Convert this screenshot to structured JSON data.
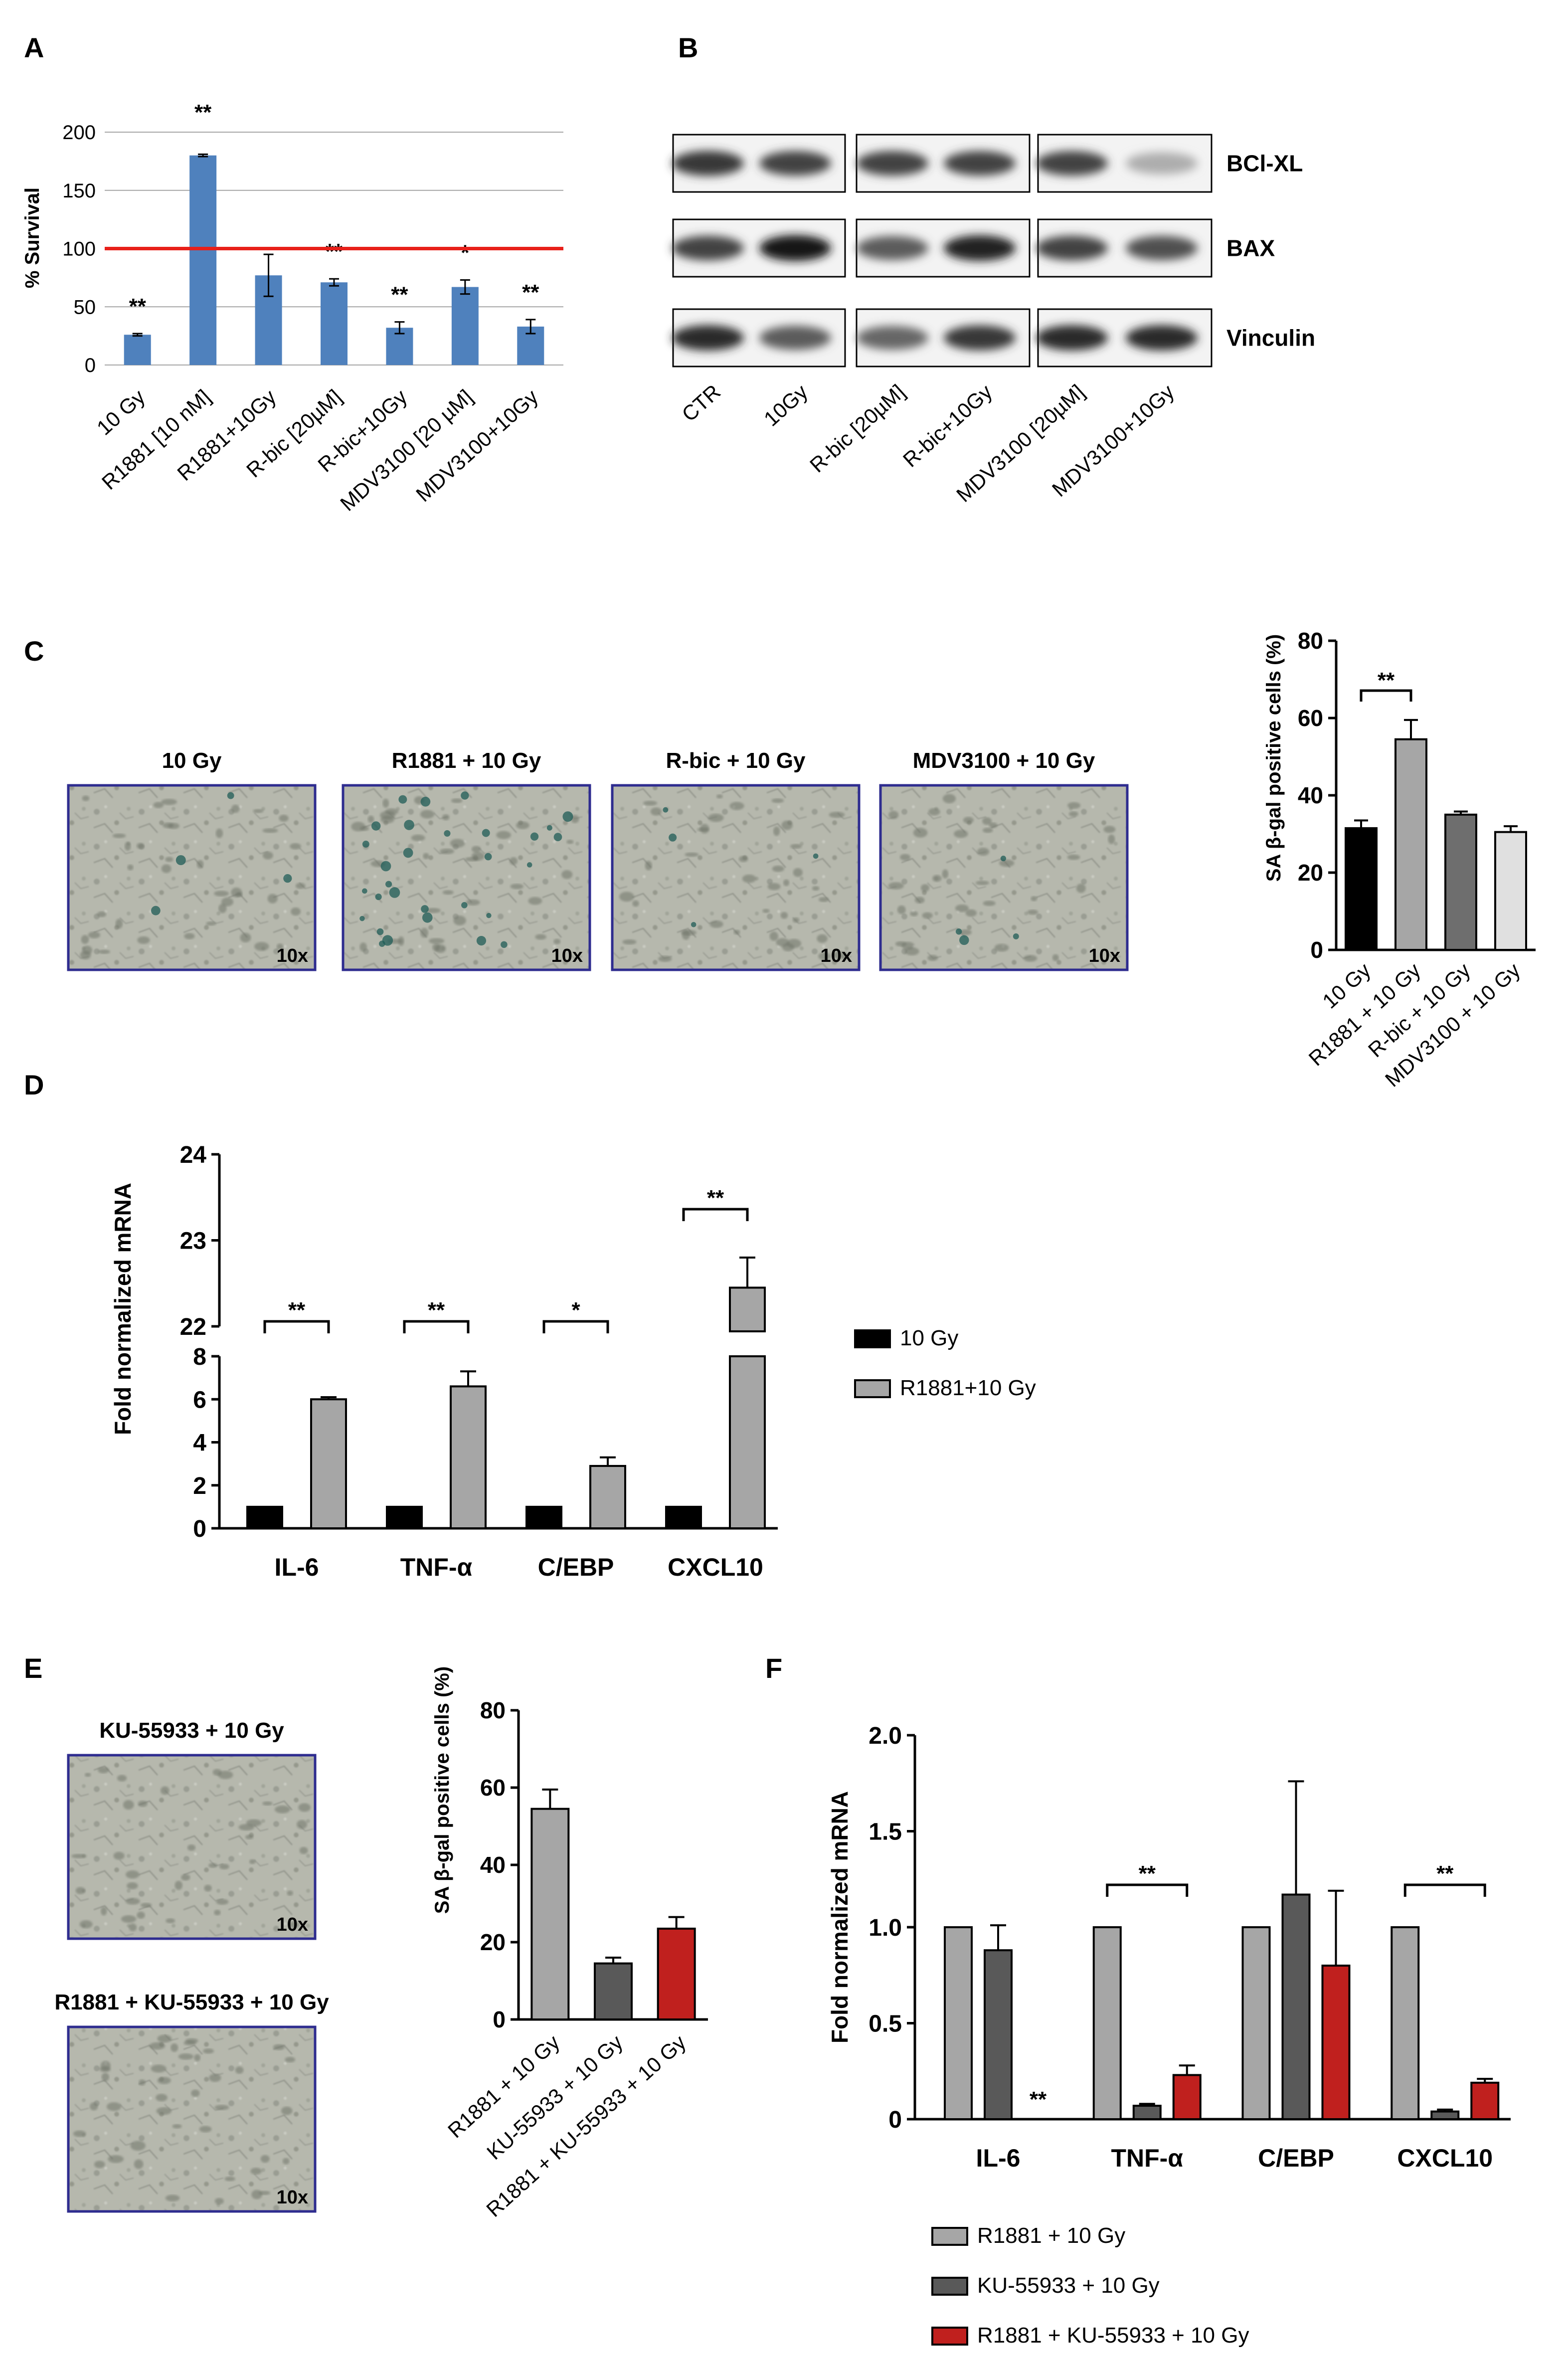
{
  "panels": {
    "A": {
      "letter": "A",
      "chart_data": {
        "type": "bar",
        "title": "",
        "ylabel": "% Survival",
        "ylim": [
          0,
          200
        ],
        "yticks": [
          0,
          50,
          100,
          150,
          200
        ],
        "reference_line": {
          "value": 100,
          "color": "#e8201a"
        },
        "categories": [
          "10 Gy",
          "R1881 [10 nM]",
          "R1881+10Gy",
          "R-bic [20µM]",
          "R-bic+10Gy",
          "MDV3100 [20 µM]",
          "MDV3100+10Gy"
        ],
        "values": [
          26,
          180,
          77,
          71,
          32,
          67,
          33
        ],
        "errors": [
          1,
          1,
          18,
          3,
          5,
          6,
          6
        ],
        "significance": [
          "**",
          "**",
          "",
          "**",
          "**",
          "*",
          "**"
        ],
        "bar_color": "#4f81bd",
        "grid": true
      }
    },
    "B": {
      "letter": "B",
      "lanes": [
        "CTR",
        "10Gy",
        "R-bic [20µM]",
        "R-bic+10Gy",
        "MDV3100 [20µM]",
        "MDV3100+10Gy"
      ],
      "rows": [
        {
          "label": "BCl-XL",
          "intensity": [
            0.85,
            0.8,
            0.8,
            0.8,
            0.8,
            0.35
          ]
        },
        {
          "label": "BAX",
          "intensity": [
            0.8,
            1.0,
            0.7,
            0.95,
            0.8,
            0.75
          ]
        },
        {
          "label": "Vinculin",
          "intensity": [
            0.9,
            0.7,
            0.65,
            0.85,
            0.9,
            0.9
          ]
        }
      ]
    },
    "C": {
      "letter": "C",
      "images": [
        {
          "title": "10 Gy",
          "mag": "10x"
        },
        {
          "title": "R1881 + 10 Gy",
          "mag": "10x"
        },
        {
          "title": "R-bic + 10 Gy",
          "mag": "10x"
        },
        {
          "title": "MDV3100 + 10 Gy",
          "mag": "10x"
        }
      ],
      "chart_data": {
        "type": "bar",
        "ylabel": "SA β-gal positive cells (%)",
        "ylim": [
          0,
          80
        ],
        "yticks": [
          0,
          20,
          40,
          60,
          80
        ],
        "categories": [
          "10 Gy",
          "R1881 + 10 Gy",
          "R-bic + 10 Gy",
          "MDV3100 + 10 Gy"
        ],
        "values": [
          31.5,
          54.5,
          35,
          30.5
        ],
        "errors": [
          2,
          5,
          0.8,
          1.5
        ],
        "colors": [
          "#000000",
          "#a6a6a6",
          "#6e6e6e",
          "#e0e0e0"
        ],
        "bracket": {
          "from": 0,
          "to": 1,
          "label": "**"
        }
      }
    },
    "D": {
      "letter": "D",
      "chart_data": {
        "type": "bar",
        "ylabel": "Fold normalized mRNA",
        "broken_axis": {
          "lower": [
            0,
            8
          ],
          "upper": [
            22,
            24
          ]
        },
        "yticks_lower": [
          0,
          2,
          4,
          6,
          8
        ],
        "yticks_upper": [
          22,
          23,
          24
        ],
        "categories": [
          "IL-6",
          "TNF-α",
          "C/EBP",
          "CXCL10"
        ],
        "series": [
          {
            "name": "10 Gy",
            "values": [
              1,
              1,
              1,
              1
            ],
            "errors": [
              0,
              0,
              0,
              0
            ],
            "color": "#000000"
          },
          {
            "name": "R1881+10 Gy",
            "values": [
              6.0,
              6.6,
              2.9,
              22.45
            ],
            "errors": [
              0.1,
              0.7,
              0.4,
              0.35
            ],
            "color": "#a6a6a6"
          }
        ],
        "significance": [
          "**",
          "**",
          "*",
          "**"
        ]
      }
    },
    "E": {
      "letter": "E",
      "images": [
        {
          "title": "KU-55933 + 10 Gy",
          "mag": "10x"
        },
        {
          "title": "R1881 + KU-55933 + 10 Gy",
          "mag": "10x"
        }
      ],
      "chart_data": {
        "type": "bar",
        "ylabel": "SA β-gal positive cells (%)",
        "ylim": [
          0,
          80
        ],
        "yticks": [
          0,
          20,
          40,
          60,
          80
        ],
        "categories": [
          "R1881 + 10 Gy",
          "KU-55933 + 10 Gy",
          "R1881 + KU-55933 + 10 Gy"
        ],
        "values": [
          54.5,
          14.5,
          23.5
        ],
        "errors": [
          5,
          1.5,
          3
        ],
        "colors": [
          "#a6a6a6",
          "#595959",
          "#c0201e"
        ]
      }
    },
    "F": {
      "letter": "F",
      "chart_data": {
        "type": "bar",
        "ylabel": "Fold normalized mRNA",
        "ylim": [
          0,
          2.0
        ],
        "yticks": [
          "0",
          "0.5",
          "1.0",
          "1.5",
          "2.0"
        ],
        "categories": [
          "IL-6",
          "TNF-α",
          "C/EBP",
          "CXCL10"
        ],
        "series": [
          {
            "name": "R1881 + 10 Gy",
            "values": [
              1.0,
              1.0,
              1.0,
              1.0
            ],
            "errors": [
              0,
              0,
              0,
              0
            ],
            "color": "#a6a6a6"
          },
          {
            "name": "KU-55933 + 10 Gy",
            "values": [
              0.88,
              0.07,
              1.17,
              0.04
            ],
            "errors": [
              0.13,
              0.01,
              0.59,
              0.01
            ],
            "color": "#595959"
          },
          {
            "name": "R1881 + KU-55933 + 10 Gy",
            "values": [
              0,
              0.23,
              0.8,
              0.19
            ],
            "errors": [
              0,
              0.05,
              0.39,
              0.02
            ],
            "color": "#c0201e"
          }
        ],
        "brackets": [
          {
            "category": 1,
            "label": "**"
          },
          {
            "category": 3,
            "label": "**"
          }
        ],
        "star_labels": [
          {
            "category": 0,
            "label": "**"
          }
        ]
      }
    }
  }
}
